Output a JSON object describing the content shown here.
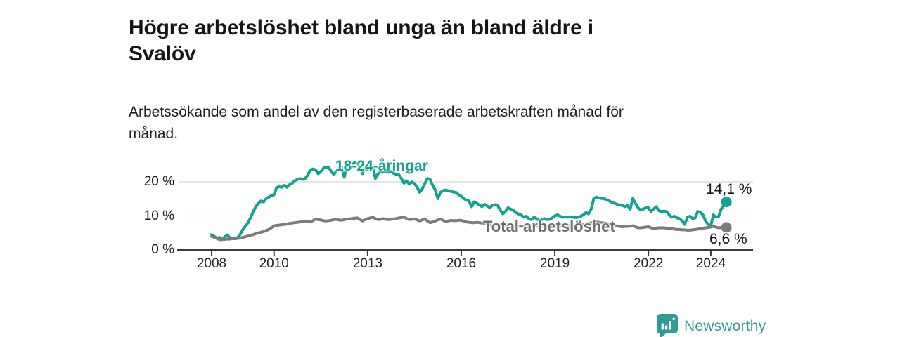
{
  "header": {
    "title": "Högre arbetslöshet bland unga än bland äldre i Svalöv",
    "title_lines": [
      "Högre arbetslöshet bland unga än bland äldre i",
      "Svalöv"
    ],
    "subtitle": "Arbetssökande som andel av den registerbaserade arbetskraften månad för månad.",
    "subtitle_lines": [
      "Arbetssökande som andel av den registerbaserade arbetskraften månad för",
      "månad."
    ]
  },
  "chart_data": {
    "type": "line",
    "title": "Högre arbetslöshet bland unga än bland äldre i Svalöv",
    "subtitle": "Arbetssökande som andel av den registerbaserade arbetskraften månad för månad.",
    "unit": "%",
    "grid": "horizontal-only",
    "legend_position": "inline-labels",
    "x_start_year": 2008,
    "points_per_month": 1,
    "x_ticks": [
      2008,
      2010,
      2013,
      2016,
      2019,
      2022,
      2024
    ],
    "x_tick_labels": [
      "2008",
      "2010",
      "2013",
      "2016",
      "2019",
      "2022",
      "2024"
    ],
    "y_ticks": [
      0,
      10,
      20
    ],
    "y_tick_labels": [
      "0 %",
      "10 %",
      "20 %"
    ],
    "ylim": [
      0,
      28
    ],
    "xlim": [
      2007.8,
      2025.3
    ],
    "series": [
      {
        "name": "18-24-åringar",
        "color": "#12a192",
        "end_label": "14,1 %",
        "end_value": 14.1,
        "values": [
          4.5,
          4.0,
          3.4,
          3.7,
          3.0,
          3.8,
          4.4,
          3.6,
          3.3,
          3.5,
          3.6,
          4.6,
          6.0,
          7.0,
          8.0,
          9.5,
          11.3,
          12.7,
          13.7,
          14.4,
          14.1,
          15.1,
          15.5,
          16.0,
          16.2,
          18.3,
          18.6,
          18.4,
          19.0,
          18.4,
          19.2,
          19.6,
          20.3,
          20.7,
          21.0,
          20.7,
          21.0,
          22.0,
          23.5,
          23.8,
          23.5,
          22.4,
          23.0,
          24.0,
          24.4,
          24.2,
          23.1,
          22.1,
          23.2,
          24.2,
          24.4,
          21.4,
          24.5,
          23.5,
          25.2,
          25.6,
          25.4,
          24.9,
          22.4,
          24.2,
          23.5,
          25.3,
          24.5,
          21.0,
          22.4,
          23.0,
          22.8,
          23.2,
          22.8,
          23.0,
          22.5,
          22.2,
          22.1,
          21.0,
          19.6,
          20.3,
          19.3,
          20.0,
          19.5,
          18.5,
          16.9,
          17.9,
          19.5,
          21.0,
          20.7,
          19.0,
          17.6,
          15.1,
          16.9,
          17.4,
          17.6,
          17.4,
          17.2,
          17.0,
          16.9,
          16.2,
          15.8,
          15.1,
          14.6,
          14.4,
          12.7,
          14.1,
          13.7,
          13.2,
          12.7,
          13.4,
          12.9,
          12.4,
          13.1,
          13.3,
          13.1,
          11.7,
          10.6,
          11.3,
          12.4,
          12.0,
          11.7,
          11.0,
          10.6,
          10.3,
          9.6,
          9.9,
          9.2,
          8.9,
          9.6,
          9.2,
          8.5,
          8.9,
          9.2,
          8.9,
          9.0,
          9.4,
          10.0,
          10.3,
          9.9,
          9.6,
          9.7,
          9.6,
          9.7,
          9.6,
          9.5,
          9.6,
          9.9,
          10.3,
          11.0,
          10.6,
          12.0,
          15.1,
          15.5,
          15.3,
          15.1,
          15.1,
          14.7,
          14.4,
          13.9,
          13.7,
          13.4,
          13.2,
          13.1,
          12.7,
          13.1,
          12.0,
          15.1,
          13.7,
          12.4,
          11.7,
          12.0,
          12.4,
          12.4,
          11.3,
          12.0,
          12.7,
          11.5,
          11.3,
          11.4,
          11.3,
          10.3,
          9.6,
          9.9,
          9.4,
          9.2,
          8.5,
          7.5,
          9.6,
          9.9,
          9.2,
          9.4,
          11.3,
          11.0,
          10.3,
          8.5,
          7.5,
          7.1,
          10.3,
          9.6,
          9.8,
          12.0,
          13.0,
          14.1
        ]
      },
      {
        "name": "Total arbetslöshet",
        "color": "#7b7b7b",
        "end_label": "6,6 %",
        "end_value": 6.6,
        "values": [
          4.0,
          3.7,
          3.4,
          3.0,
          3.1,
          3.1,
          3.2,
          3.2,
          3.3,
          3.3,
          3.4,
          3.5,
          3.7,
          3.9,
          4.1,
          4.3,
          4.5,
          4.8,
          5.0,
          5.2,
          5.4,
          5.7,
          6.0,
          6.5,
          7.1,
          7.2,
          7.3,
          7.4,
          7.5,
          7.6,
          7.8,
          7.9,
          8.0,
          8.1,
          8.2,
          8.4,
          8.5,
          8.3,
          8.2,
          8.6,
          9.1,
          8.9,
          8.8,
          8.6,
          8.5,
          8.6,
          8.7,
          8.9,
          9.0,
          8.8,
          8.7,
          8.9,
          9.1,
          9.1,
          9.2,
          9.3,
          9.4,
          9.0,
          8.5,
          8.9,
          9.2,
          9.4,
          9.6,
          9.2,
          8.9,
          9.0,
          9.2,
          9.0,
          8.9,
          9.0,
          9.1,
          9.2,
          9.4,
          9.5,
          9.6,
          9.2,
          8.9,
          9.0,
          9.1,
          8.8,
          8.5,
          8.8,
          9.1,
          8.5,
          8.0,
          8.2,
          8.5,
          8.8,
          9.1,
          8.7,
          8.4,
          8.5,
          8.7,
          8.6,
          8.6,
          8.7,
          8.7,
          8.4,
          8.2,
          8.1,
          8.0,
          8.0,
          8.1,
          8.0,
          7.9,
          7.8,
          7.7,
          7.4,
          7.1,
          7.2,
          7.3,
          7.3,
          7.2,
          7.2,
          7.2,
          7.1,
          7.1,
          7.0,
          7.0,
          7.0,
          7.0,
          7.1,
          7.2,
          7.1,
          7.1,
          7.0,
          7.0,
          7.0,
          7.0,
          7.0,
          7.0,
          7.0,
          7.0,
          7.0,
          7.1,
          7.1,
          7.2,
          7.2,
          7.2,
          7.3,
          7.3,
          7.4,
          7.4,
          7.5,
          7.5,
          7.7,
          8.0,
          8.2,
          8.2,
          8.1,
          8.0,
          7.9,
          7.8,
          7.6,
          7.4,
          7.2,
          7.0,
          6.9,
          6.8,
          6.9,
          6.9,
          7.0,
          7.1,
          6.8,
          6.5,
          6.5,
          6.6,
          6.7,
          6.8,
          6.5,
          6.3,
          6.4,
          6.5,
          6.5,
          6.5,
          6.4,
          6.4,
          6.2,
          6.1,
          6.0,
          6.0,
          5.9,
          5.9,
          5.8,
          5.8,
          5.9,
          6.0,
          6.1,
          6.3,
          6.4,
          6.5,
          6.6,
          6.7,
          6.9,
          6.7,
          6.5,
          6.6,
          6.7,
          6.6
        ]
      }
    ]
  },
  "colors": {
    "accent_teal": "#12a192",
    "line_gray": "#7b7b7b",
    "label_gray": "#6f6f6f",
    "gridline": "#d8d8d8",
    "axis": "#3a3a3a",
    "text": "#151515",
    "brand": "#2f9d95"
  },
  "branding": {
    "logo_text": "Newsworthy",
    "logo_icon": "speech-bubble-bar-chart-icon"
  }
}
